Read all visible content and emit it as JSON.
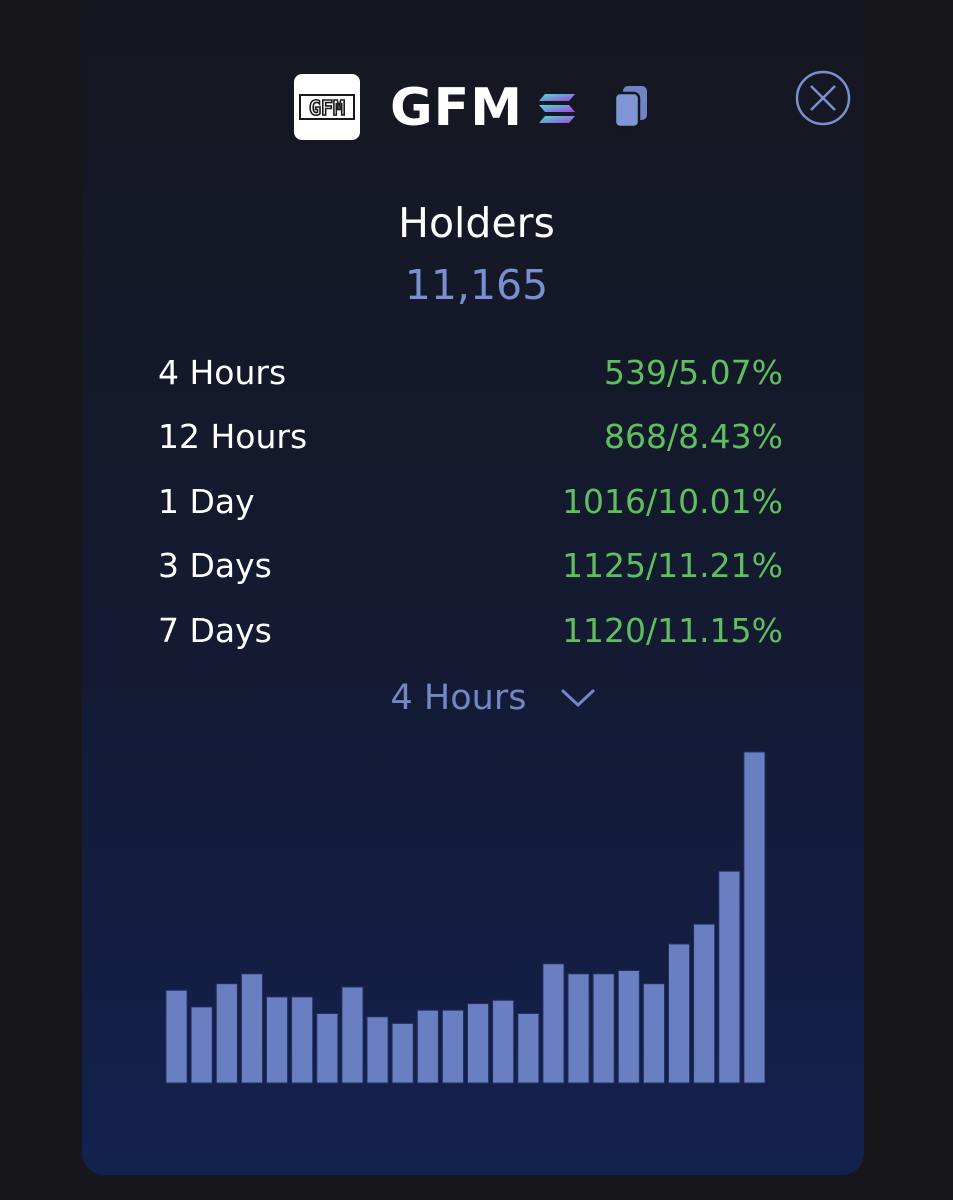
{
  "header": {
    "logo_text": "GFM",
    "token_name": "GFM"
  },
  "holders": {
    "title": "Holders",
    "count": "11,165"
  },
  "stats": [
    {
      "label": "4 Hours",
      "value": "539/5.07%"
    },
    {
      "label": "12 Hours",
      "value": "868/8.43%"
    },
    {
      "label": "1 Day",
      "value": "1016/10.01%"
    },
    {
      "label": "3 Days",
      "value": "1125/11.21%"
    },
    {
      "label": "7 Days",
      "value": "1120/11.15%"
    }
  ],
  "period_select": {
    "selected": "4 Hours"
  },
  "icons": {
    "chain": "solana-icon",
    "copy": "copy-icon",
    "close": "close-icon",
    "dropdown": "chevron-down-icon"
  },
  "colors": {
    "accent": "#7a8fcf",
    "positive": "#5fbf5f",
    "bar": "#6a7fc1"
  },
  "chart_data": {
    "type": "bar",
    "values": [
      28,
      23,
      30,
      33,
      26,
      26,
      21,
      29,
      20,
      18,
      22,
      22,
      24,
      25,
      21,
      36,
      33,
      33,
      34,
      30,
      42,
      48,
      64,
      100
    ],
    "ylim": [
      0,
      100
    ]
  }
}
